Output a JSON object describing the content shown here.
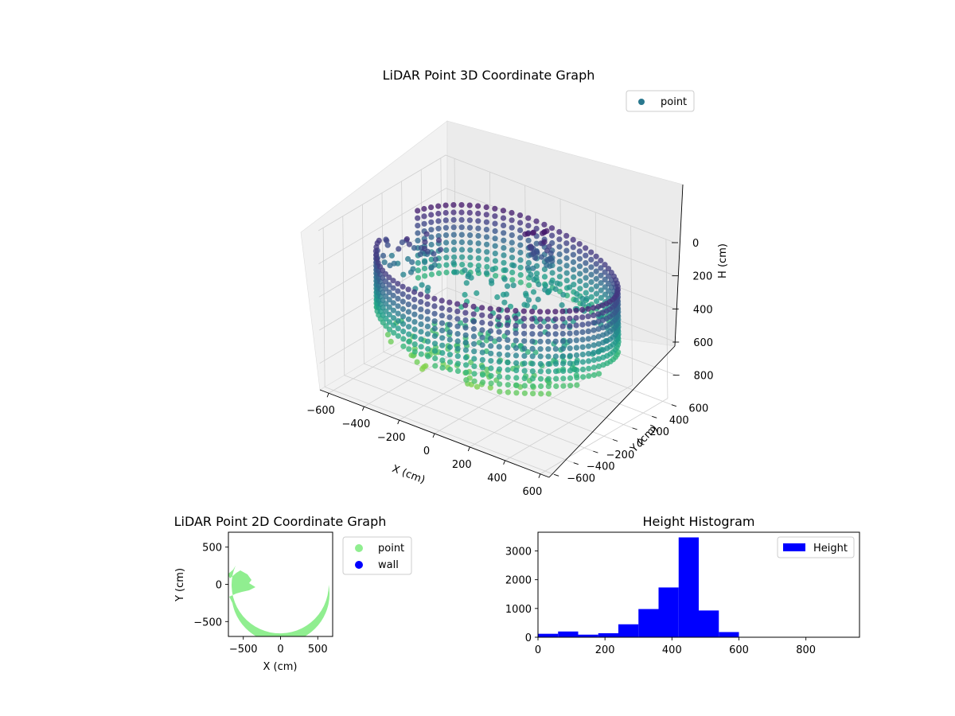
{
  "chart_data": [
    {
      "type": "scatter",
      "projection": "3d",
      "title": "LiDAR Point 3D Coordinate Graph",
      "xlabel": "X (cm)",
      "ylabel": "Y (cm)",
      "zlabel": "H (cm)",
      "xlim": [
        -650,
        650
      ],
      "ylim": [
        -650,
        650
      ],
      "zlim": [
        0,
        960
      ],
      "z_inverted": true,
      "xticks": [
        "−600",
        "−400",
        "−200",
        "0",
        "200",
        "400",
        "600"
      ],
      "yticks": [
        "−600",
        "−400",
        "−200",
        "0",
        "200",
        "400",
        "600"
      ],
      "zticks": [
        "0",
        "200",
        "400",
        "600",
        "800"
      ],
      "colormap": "viridis",
      "legend": {
        "position": "top-right",
        "entries": [
          {
            "label": "point",
            "color": "#2a788e"
          }
        ]
      },
      "series": [
        {
          "name": "point",
          "shape": "cylindrical wall of points, radius ~600 cm, height ~200–600 cm, opening toward -X, dense floor near H 400–700, tall column near X -50, Y 450",
          "color_by": "H"
        }
      ]
    },
    {
      "type": "scatter",
      "title": "LiDAR Point 2D Coordinate Graph",
      "xlabel": "X (cm)",
      "ylabel": "Y (cm)",
      "xlim": [
        -700,
        700
      ],
      "ylim": [
        -700,
        700
      ],
      "xticks": [
        "−500",
        "0",
        "500"
      ],
      "yticks": [
        "500",
        "0",
        "−500"
      ],
      "legend": {
        "position": "outside-right",
        "entries": [
          {
            "label": "point",
            "color": "#90ee90"
          },
          {
            "label": "wall",
            "color": "#0000ff"
          }
        ]
      },
      "series": [
        {
          "name": "point",
          "color": "#90ee90",
          "shape": "filled disc radius ~620 cm centred at origin with a notch open toward -X"
        },
        {
          "name": "wall",
          "color": "#0000ff",
          "values": []
        }
      ]
    },
    {
      "type": "bar",
      "subtype": "histogram",
      "title": "Height Histogram",
      "xlim": [
        0,
        960
      ],
      "ylim": [
        0,
        3650
      ],
      "xticks": [
        "0",
        "200",
        "400",
        "600",
        "800"
      ],
      "yticks": [
        "0",
        "1000",
        "2000",
        "3000"
      ],
      "legend": {
        "position": "top-right",
        "entries": [
          {
            "label": "Height",
            "color": "#0000ff"
          }
        ]
      },
      "bin_width": 60,
      "bin_edges": [
        0,
        60,
        120,
        180,
        240,
        300,
        360,
        420,
        480,
        540,
        600
      ],
      "values": [
        120,
        200,
        90,
        140,
        450,
        980,
        1730,
        3470,
        930,
        180
      ],
      "color": "#0000ff"
    }
  ]
}
